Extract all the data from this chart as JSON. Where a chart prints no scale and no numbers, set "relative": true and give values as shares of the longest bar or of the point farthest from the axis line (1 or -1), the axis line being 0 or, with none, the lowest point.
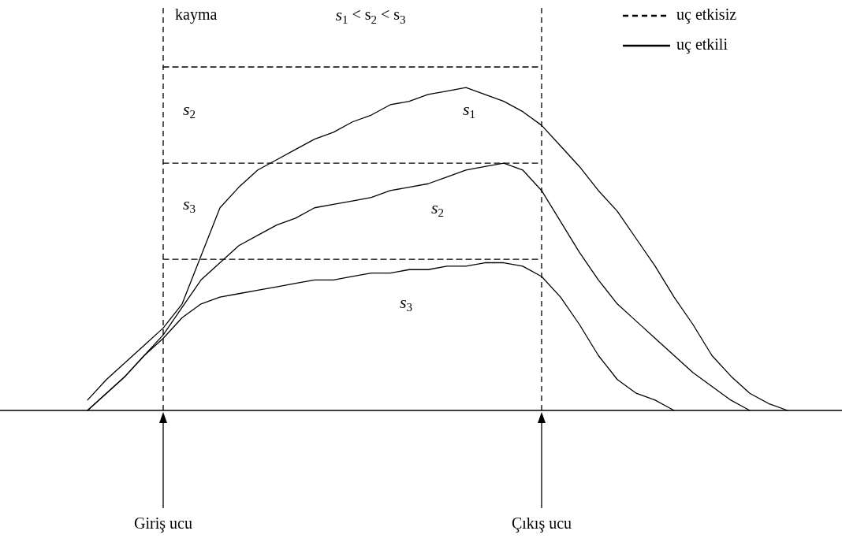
{
  "chart_data": {
    "type": "line",
    "relative": true,
    "legend": "top right",
    "categories": [
      null,
      null,
      null,
      null,
      null,
      null,
      null,
      null,
      null,
      null,
      null,
      null,
      null,
      null,
      null,
      null,
      null,
      null,
      null,
      null,
      null,
      null,
      null,
      null,
      null,
      null,
      null,
      null,
      null,
      null,
      null,
      null,
      null,
      null,
      null,
      null,
      null,
      null,
      null
    ],
    "series": [
      {
        "name": "uç etkisiz",
        "color": "#000000",
        "line_style": "dashed",
        "values": [
          null,
          null,
          null,
          null,
          1,
          1,
          1,
          1,
          1,
          1,
          1,
          1,
          1,
          1,
          1,
          1,
          1,
          1,
          1,
          1,
          1,
          1,
          1,
          1,
          1,
          null,
          null,
          null,
          null,
          null,
          null,
          null,
          null,
          null,
          null,
          null,
          null,
          null,
          null
        ]
      },
      {
        "color": "#000000",
        "line_style": "dashed",
        "values": [
          null,
          null,
          null,
          null,
          0.72,
          0.72,
          0.72,
          0.72,
          0.72,
          0.72,
          0.72,
          0.72,
          0.72,
          0.72,
          0.72,
          0.72,
          0.72,
          0.72,
          0.72,
          0.72,
          0.72,
          0.72,
          0.72,
          0.72,
          0.72,
          null,
          null,
          null,
          null,
          null,
          null,
          null,
          null,
          null,
          null,
          null,
          null,
          null,
          null
        ]
      },
      {
        "color": "#000000",
        "line_style": "dashed",
        "values": [
          null,
          null,
          null,
          null,
          0.44,
          0.44,
          0.44,
          0.44,
          0.44,
          0.44,
          0.44,
          0.44,
          0.44,
          0.44,
          0.44,
          0.44,
          0.44,
          0.44,
          0.44,
          0.44,
          0.44,
          0.44,
          0.44,
          0.44,
          0.44,
          null,
          null,
          null,
          null,
          null,
          null,
          null,
          null,
          null,
          null,
          null,
          null,
          null,
          null
        ]
      },
      {
        "name": "uç etkili",
        "color": "#000000",
        "line_style": "solid",
        "values": [
          0.03,
          0.09,
          0.14,
          0.19,
          0.24,
          0.31,
          0.45,
          0.59,
          0.65,
          0.7,
          0.73,
          0.76,
          0.79,
          0.81,
          0.84,
          0.86,
          0.89,
          0.9,
          0.92,
          0.93,
          0.94,
          0.92,
          0.9,
          0.87,
          0.83,
          0.77,
          0.71,
          0.64,
          0.58,
          0.5,
          0.42,
          0.33,
          0.25,
          0.16,
          0.1,
          0.05,
          0.02,
          0,
          null
        ]
      },
      {
        "color": "#000000",
        "line_style": "solid",
        "values": [
          0,
          0.05,
          0.1,
          0.16,
          0.22,
          0.3,
          0.38,
          0.43,
          0.48,
          0.51,
          0.54,
          0.56,
          0.59,
          0.6,
          0.61,
          0.62,
          0.64,
          0.65,
          0.66,
          0.68,
          0.7,
          0.71,
          0.72,
          0.7,
          0.64,
          0.55,
          0.46,
          0.38,
          0.31,
          0.26,
          0.21,
          0.16,
          0.11,
          0.07,
          0.03,
          0,
          null,
          null,
          null
        ]
      },
      {
        "color": "#000000",
        "line_style": "solid",
        "values": [
          0,
          0.05,
          0.1,
          0.16,
          0.21,
          0.27,
          0.31,
          0.33,
          0.34,
          0.35,
          0.36,
          0.37,
          0.38,
          0.38,
          0.39,
          0.4,
          0.4,
          0.41,
          0.41,
          0.42,
          0.42,
          0.43,
          0.43,
          0.42,
          0.39,
          0.33,
          0.25,
          0.16,
          0.09,
          0.05,
          0.03,
          0,
          null,
          null,
          null,
          null,
          null,
          null,
          null
        ]
      }
    ],
    "annotations": [
      "kayma",
      "s$_{1}$ < s$_{2}$ < s$_{3}$",
      "s$_{2}$",
      "s$_{3}$",
      "s$_{1}$",
      "s$_{2}$",
      "s$_{3}$",
      "Giriş ucu",
      "Çıkış ucu"
    ]
  }
}
